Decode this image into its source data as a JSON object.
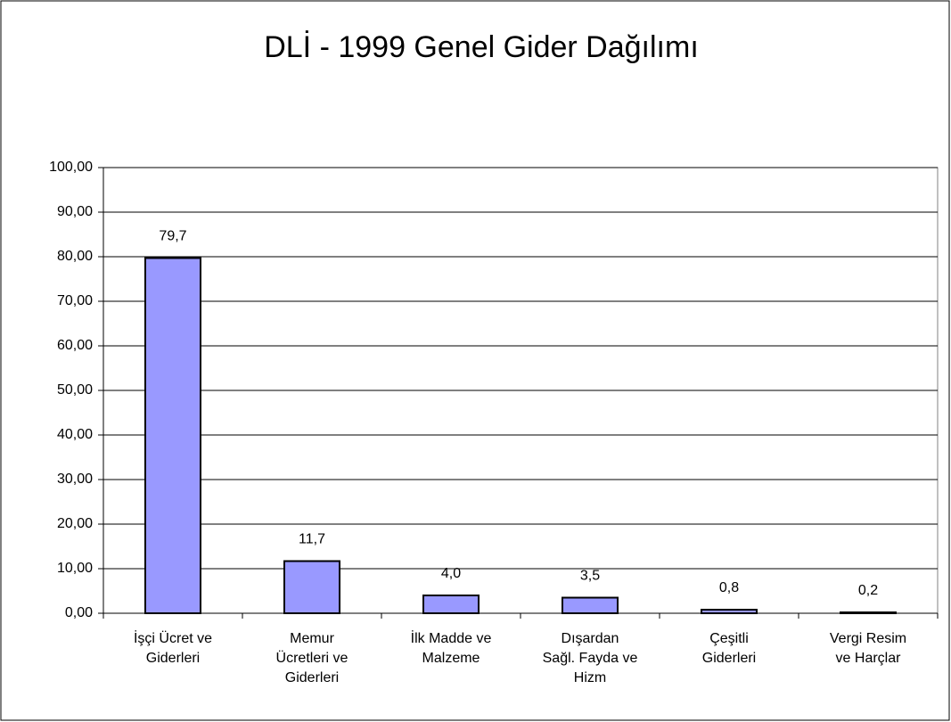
{
  "chart_data": {
    "type": "bar",
    "title": "DLİ - 1999 Genel Gider Dağılımı",
    "categories": [
      "İşçi Ücret ve\nGiderleri",
      "Memur\nÜcretleri ve\nGiderleri",
      "İlk Madde ve\nMalzeme",
      "Dışardan\nSağl. Fayda ve\nHizm",
      "Çeşitli\nGiderleri",
      "Vergi Resim\nve Harçlar"
    ],
    "values": [
      79.7,
      11.7,
      4.0,
      3.5,
      0.8,
      0.2
    ],
    "value_labels": [
      "79,7",
      "11,7",
      "4,0",
      "3,5",
      "0,8",
      "0,2"
    ],
    "color": "#9999ff",
    "ylim": [
      0,
      100
    ],
    "yticks": [
      {
        "value": 0,
        "label": "0,00"
      },
      {
        "value": 10,
        "label": "10,00"
      },
      {
        "value": 20,
        "label": "20,00"
      },
      {
        "value": 30,
        "label": "30,00"
      },
      {
        "value": 40,
        "label": "40,00"
      },
      {
        "value": 50,
        "label": "50,00"
      },
      {
        "value": 60,
        "label": "60,00"
      },
      {
        "value": 70,
        "label": "70,00"
      },
      {
        "value": 80,
        "label": "80,00"
      },
      {
        "value": 90,
        "label": "90,00"
      },
      {
        "value": 100,
        "label": "100,00"
      }
    ],
    "grid": true
  }
}
